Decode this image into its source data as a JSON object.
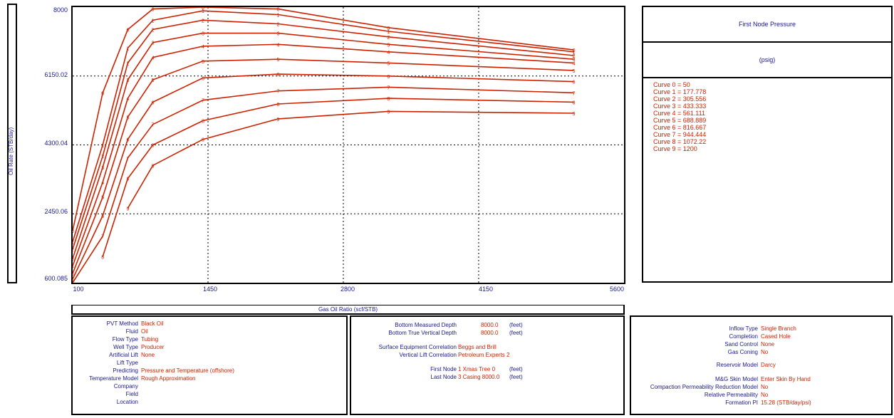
{
  "chart_data": {
    "type": "line",
    "title": "",
    "xlabel": "Gas Oil Ratio  (scf/STB)",
    "ylabel": "Oil Rate  (STB/day)",
    "xlim": [
      100,
      5600
    ],
    "ylim": [
      600.085,
      8000
    ],
    "x_ticks": [
      "100",
      "1450",
      "2800",
      "4150",
      "5600"
    ],
    "y_ticks": [
      "8000",
      "6150.02",
      "4300.04",
      "2450.06",
      "600.085"
    ],
    "grid": true,
    "x": [
      100,
      400,
      650,
      900,
      1400,
      2150,
      3250,
      5100
    ],
    "series": [
      {
        "name": "0",
        "values": [
          2000,
          5700,
          7400,
          7950,
          8050,
          7950,
          7450,
          6850
        ]
      },
      {
        "name": "1",
        "values": [
          1700,
          4300,
          6900,
          7650,
          7900,
          7800,
          7350,
          6800
        ]
      },
      {
        "name": "2",
        "values": [
          1500,
          4000,
          6500,
          7400,
          7650,
          7550,
          7200,
          6700
        ]
      },
      {
        "name": "3",
        "values": [
          1250,
          3700,
          6050,
          7050,
          7300,
          7300,
          7000,
          6600
        ]
      },
      {
        "name": "4",
        "values": [
          1050,
          3300,
          5550,
          6650,
          6950,
          7000,
          6800,
          6500
        ]
      },
      {
        "name": "5",
        "values": [
          850,
          2900,
          5050,
          6050,
          6550,
          6600,
          6500,
          6300
        ]
      },
      {
        "name": "6",
        "values": [
          700,
          2400,
          4450,
          5450,
          6100,
          6200,
          6150,
          6000
        ]
      },
      {
        "name": "7",
        "values": [
          500,
          1850,
          3950,
          4850,
          5500,
          5750,
          5850,
          5700
        ]
      },
      {
        "name": "8",
        "values": [
          null,
          1300,
          3400,
          4300,
          4950,
          5400,
          5550,
          5450
        ]
      },
      {
        "name": "9",
        "values": [
          null,
          null,
          2600,
          3750,
          4450,
          5000,
          5200,
          5150
        ]
      }
    ]
  },
  "legend": {
    "title": "First Node Pressure",
    "unit": "(psig)",
    "items": [
      "Curve 0 = 50",
      "Curve 1 = 177.778",
      "Curve 2 = 305.556",
      "Curve 3 = 433.333",
      "Curve 4 = 561.111",
      "Curve 5 = 688.889",
      "Curve 6 = 816.667",
      "Curve 7 = 944.444",
      "Curve 8 = 1072.22",
      "Curve 9 = 1200"
    ]
  },
  "info_left": [
    {
      "label": "PVT Method",
      "value": "Black Oil"
    },
    {
      "label": "Fluid",
      "value": "Oil"
    },
    {
      "label": "Flow Type",
      "value": "Tubing"
    },
    {
      "label": "Well Type",
      "value": "Producer"
    },
    {
      "label": "Artificial Lift",
      "value": "None"
    },
    {
      "label": "Lift Type",
      "value": ""
    },
    {
      "label": "Predicting",
      "value": "Pressure and Temperature (offshore)"
    },
    {
      "label": "Temperature Model",
      "value": "Rough Approximation"
    },
    {
      "label": "Company",
      "value": ""
    },
    {
      "label": "Field",
      "value": ""
    },
    {
      "label": "Location",
      "value": ""
    }
  ],
  "info_mid": {
    "bmd_label": "Bottom Measured Depth",
    "bmd_value": "8000.0",
    "bmd_unit": "(feet)",
    "btvd_label": "Bottom True Vertical Depth",
    "btvd_value": "8000.0",
    "btvd_unit": "(feet)",
    "sec_label": "Surface Equipment Correlation",
    "sec_value": "Beggs and Brill",
    "vlc_label": "Vertical Lift Correlation",
    "vlc_value": "Petroleum Experts 2",
    "first_node_label": "First Node",
    "first_node_value": "1 Xmas Tree 0",
    "first_node_unit": "(feet)",
    "last_node_label": "Last Node",
    "last_node_value": "3 Casing 8000.0",
    "last_node_unit": "(feet)"
  },
  "info_right": [
    {
      "label": "Inflow Type",
      "value": "Single Branch"
    },
    {
      "label": "Completion",
      "value": "Cased Hole"
    },
    {
      "label": "Sand Control",
      "value": "None"
    },
    {
      "label": "Gas Coning",
      "value": "No"
    },
    {
      "label": "Reservoir Model",
      "value": "Darcy"
    },
    {
      "label": "M&G Skin Model",
      "value": "Enter Skin By Hand"
    },
    {
      "label": "Compaction Permeability Reduction Model",
      "value": "No"
    },
    {
      "label": "Relative Permeability",
      "value": "No"
    },
    {
      "label": "Formation PI",
      "value": "15.28  (STB/day/psi)"
    }
  ],
  "colors": {
    "curve": "#cc2200",
    "text": "#1a1a8c",
    "frame": "#000000"
  }
}
